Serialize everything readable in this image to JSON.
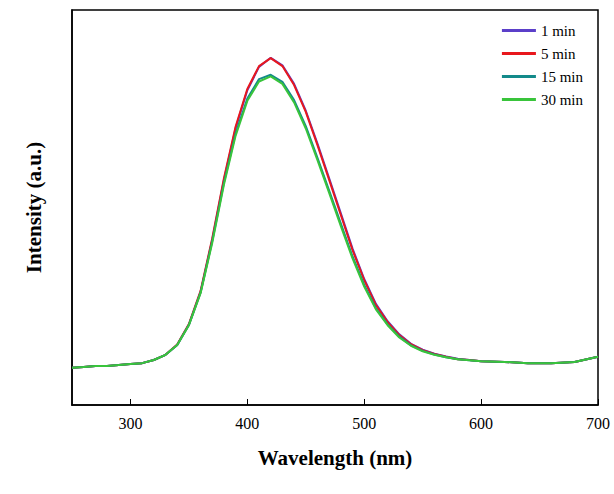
{
  "chart_data": {
    "type": "line",
    "x_label": "Wavelength (nm)",
    "y_label": "Intensity (a.u.)",
    "x": [
      250,
      260,
      270,
      280,
      290,
      300,
      310,
      320,
      330,
      340,
      350,
      360,
      370,
      380,
      390,
      400,
      410,
      420,
      430,
      440,
      450,
      460,
      470,
      480,
      490,
      500,
      510,
      520,
      530,
      540,
      550,
      560,
      570,
      580,
      590,
      600,
      620,
      640,
      660,
      680,
      700
    ],
    "series": [
      {
        "name": "1 min",
        "color": "#5b3fc9",
        "values": [
          9.4,
          9.6,
          9.9,
          9.9,
          10.1,
          10.4,
          10.6,
          11.4,
          12.7,
          15.2,
          20.3,
          28.6,
          41.8,
          57.0,
          70.1,
          79.7,
          85.6,
          87.9,
          86.0,
          81.3,
          74.5,
          66.2,
          57.4,
          48.5,
          39.6,
          31.9,
          25.6,
          21.2,
          17.9,
          15.5,
          14.0,
          13.0,
          12.3,
          11.7,
          11.4,
          11.1,
          10.9,
          10.6,
          10.6,
          10.9,
          12.2
        ]
      },
      {
        "name": "5 min",
        "color": "#e8171d",
        "values": [
          9.4,
          9.6,
          9.9,
          9.9,
          10.1,
          10.4,
          10.6,
          11.4,
          12.7,
          15.3,
          20.5,
          28.9,
          42.2,
          57.4,
          70.5,
          80.0,
          85.8,
          87.8,
          85.8,
          81.0,
          74.2,
          65.8,
          57.0,
          48.1,
          39.2,
          31.6,
          25.3,
          21.0,
          17.7,
          15.4,
          13.9,
          12.9,
          12.2,
          11.6,
          11.4,
          11.1,
          10.9,
          10.6,
          10.6,
          10.9,
          12.2
        ]
      },
      {
        "name": "15 min",
        "color": "#138a8a",
        "values": [
          9.4,
          9.6,
          9.9,
          9.9,
          10.1,
          10.4,
          10.6,
          11.4,
          12.7,
          15.2,
          20.3,
          28.5,
          41.5,
          56.3,
          68.8,
          77.6,
          82.5,
          83.6,
          81.8,
          77.2,
          70.6,
          62.6,
          54.3,
          45.9,
          37.6,
          30.4,
          24.5,
          20.4,
          17.3,
          15.1,
          13.7,
          12.8,
          12.1,
          11.6,
          11.3,
          11.1,
          10.9,
          10.6,
          10.6,
          10.9,
          12.2
        ]
      },
      {
        "name": "30 min",
        "color": "#39c43b",
        "values": [
          9.4,
          9.6,
          9.9,
          9.9,
          10.1,
          10.4,
          10.6,
          11.4,
          12.7,
          15.2,
          20.2,
          28.3,
          41.1,
          55.8,
          68.2,
          77.0,
          81.9,
          83.2,
          81.3,
          76.6,
          70.0,
          62.0,
          53.7,
          45.3,
          37.1,
          30.0,
          24.2,
          20.2,
          17.1,
          15.0,
          13.6,
          12.7,
          12.1,
          11.6,
          11.3,
          11.1,
          10.9,
          10.6,
          10.6,
          10.9,
          12.2
        ]
      }
    ],
    "xlim": [
      250,
      700
    ],
    "xticks": [
      300,
      400,
      500,
      600,
      700
    ],
    "ylim": [
      0,
      100
    ],
    "tick_labels": "x",
    "legend": "upper right",
    "grid": false,
    "marker": "none",
    "line_style": "solid"
  }
}
